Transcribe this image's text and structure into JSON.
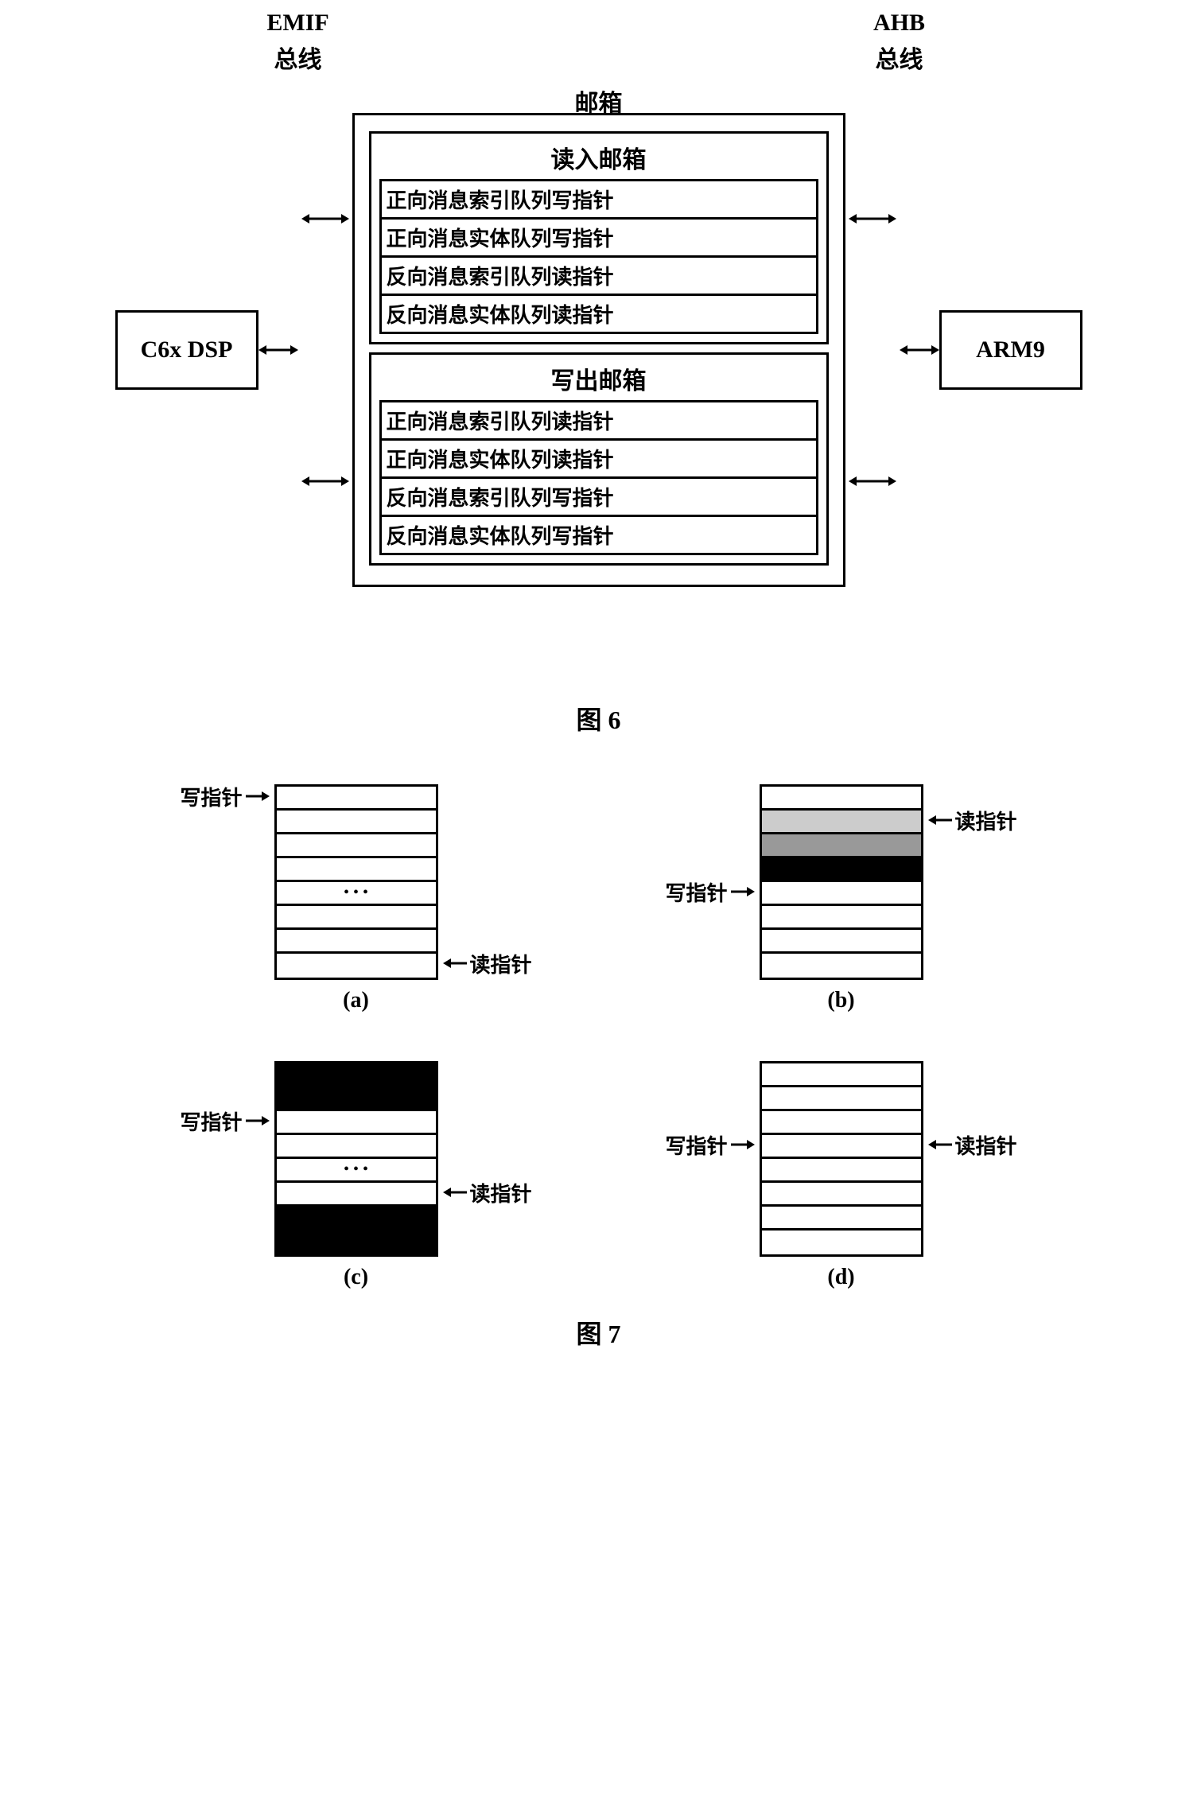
{
  "fig6": {
    "title": "邮箱",
    "left_box": "C6x DSP",
    "right_box": "ARM9",
    "emif_label1": "EMIF",
    "emif_label2": "总线",
    "ahb_label1": "AHB",
    "ahb_label2": "总线",
    "read_mailbox_title": "读入邮箱",
    "read_rows": [
      "正向消息索引队列写指针",
      "正向消息实体队列写指针",
      "反向消息索引队列读指针",
      "反向消息实体队列读指针"
    ],
    "write_mailbox_title": "写出邮箱",
    "write_rows": [
      "正向消息索引队列读指针",
      "正向消息实体队列读指针",
      "反向消息索引队列写指针",
      "反向消息实体队列写指针"
    ],
    "caption": "图 6"
  },
  "fig7": {
    "write_ptr_label": "写指针",
    "read_ptr_label": "读指针",
    "sub_a": {
      "letter": "(a)",
      "rows": 8,
      "write_ptr_row": 0,
      "read_ptr_row": 7,
      "fills": [
        "",
        "",
        "",
        "",
        "dots",
        "",
        "",
        ""
      ]
    },
    "sub_b": {
      "letter": "(b)",
      "rows": 8,
      "write_ptr_row": 4,
      "read_ptr_row": 1,
      "fills": [
        "",
        "light",
        "gray",
        "dark",
        "",
        "",
        "",
        ""
      ]
    },
    "sub_c": {
      "letter": "(c)",
      "rows": 8,
      "write_ptr_row": 2,
      "read_ptr_row": 5,
      "fills": [
        "dark",
        "dark",
        "",
        "",
        "dots",
        "",
        "dark",
        "dark"
      ]
    },
    "sub_d": {
      "letter": "(d)",
      "rows": 8,
      "write_ptr_row": 3,
      "read_ptr_row": 3,
      "fills": [
        "",
        "",
        "",
        "",
        "",
        "",
        "",
        ""
      ]
    },
    "caption": "图 7"
  },
  "colors": {
    "border": "#000000",
    "dark_fill": "#000000",
    "gray_fill": "#999999",
    "light_fill": "#cccccc",
    "background": "#ffffff"
  }
}
